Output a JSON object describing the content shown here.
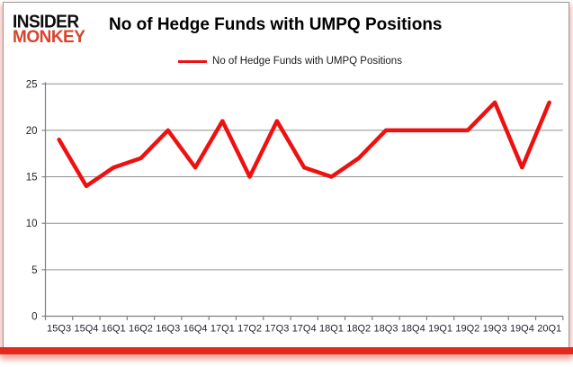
{
  "logo": {
    "line1": "INSIDER",
    "line2": "MONKEY"
  },
  "header": {
    "title": "No of Hedge Funds with UMPQ Positions"
  },
  "legend": {
    "label": "No of Hedge Funds with UMPQ Positions"
  },
  "colors": {
    "line": "#ee1111",
    "logo_black": "#0d0d0d",
    "logo_red": "#d8432c",
    "grid": "#8f8f8f",
    "axis": "#7f7f7f",
    "tick_text": "#23232e",
    "accent_bar": "#e2291c"
  },
  "chart_data": {
    "type": "line",
    "title": "No of Hedge Funds with UMPQ Positions",
    "categories": [
      "15Q3",
      "15Q4",
      "16Q1",
      "16Q2",
      "16Q3",
      "16Q4",
      "17Q1",
      "17Q2",
      "17Q3",
      "17Q4",
      "18Q1",
      "18Q2",
      "18Q3",
      "18Q4",
      "19Q1",
      "19Q2",
      "19Q3",
      "19Q4",
      "20Q1"
    ],
    "series": [
      {
        "name": "No of Hedge Funds with UMPQ Positions",
        "values": [
          19,
          14,
          16,
          17,
          20,
          16,
          21,
          15,
          21,
          16,
          15,
          17,
          20,
          20,
          20,
          20,
          23,
          16,
          23
        ]
      }
    ],
    "xlabel": "",
    "ylabel": "",
    "ylim": [
      0,
      25
    ],
    "yticks": [
      0,
      5,
      10,
      15,
      20,
      25
    ],
    "grid": true,
    "legend_position": "top-center"
  }
}
